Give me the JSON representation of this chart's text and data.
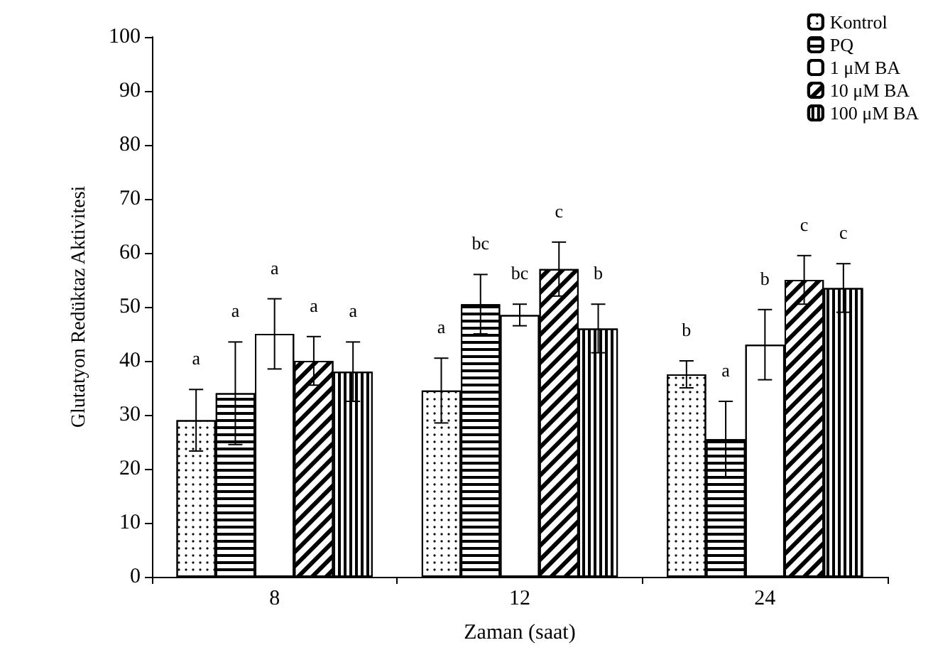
{
  "chart_data": {
    "type": "bar",
    "xlabel": "Zaman (saat)",
    "ylabel": "Glutatyon Redüktaz Aktivitesi",
    "categories": [
      "8",
      "12",
      "24"
    ],
    "series": [
      {
        "name": "Kontrol",
        "color": "#ffffff",
        "values": [
          29,
          34.5,
          37.5
        ],
        "errors": [
          5.7,
          6,
          2.5
        ]
      },
      {
        "name": "PQ",
        "color": "#ffffff",
        "values": [
          34,
          50.5,
          25.5
        ],
        "errors": [
          9.5,
          5.5,
          7
        ]
      },
      {
        "name": "1 μM BA",
        "color": "#ffffff",
        "values": [
          45,
          48.5,
          43
        ],
        "errors": [
          6.5,
          2,
          6.5
        ]
      },
      {
        "name": "10 μM BA",
        "color": "#ffffff",
        "values": [
          40,
          57,
          55
        ],
        "errors": [
          4.5,
          5,
          4.5
        ]
      },
      {
        "name": "100 μM BA",
        "color": "#ffffff",
        "values": [
          38,
          46,
          53.5
        ],
        "errors": [
          5.5,
          4.5,
          4.5
        ]
      }
    ],
    "annotations": [
      "a",
      "a",
      "a",
      "a",
      "a",
      "a",
      "bc",
      "bc",
      "c",
      "b",
      "b",
      "a",
      "b",
      "c",
      "c"
    ],
    "ylim": [
      0,
      100
    ],
    "yticks": [
      0,
      10,
      20,
      30,
      40,
      50,
      60,
      70,
      80,
      90,
      100
    ],
    "grid": false,
    "legend": "top right"
  }
}
